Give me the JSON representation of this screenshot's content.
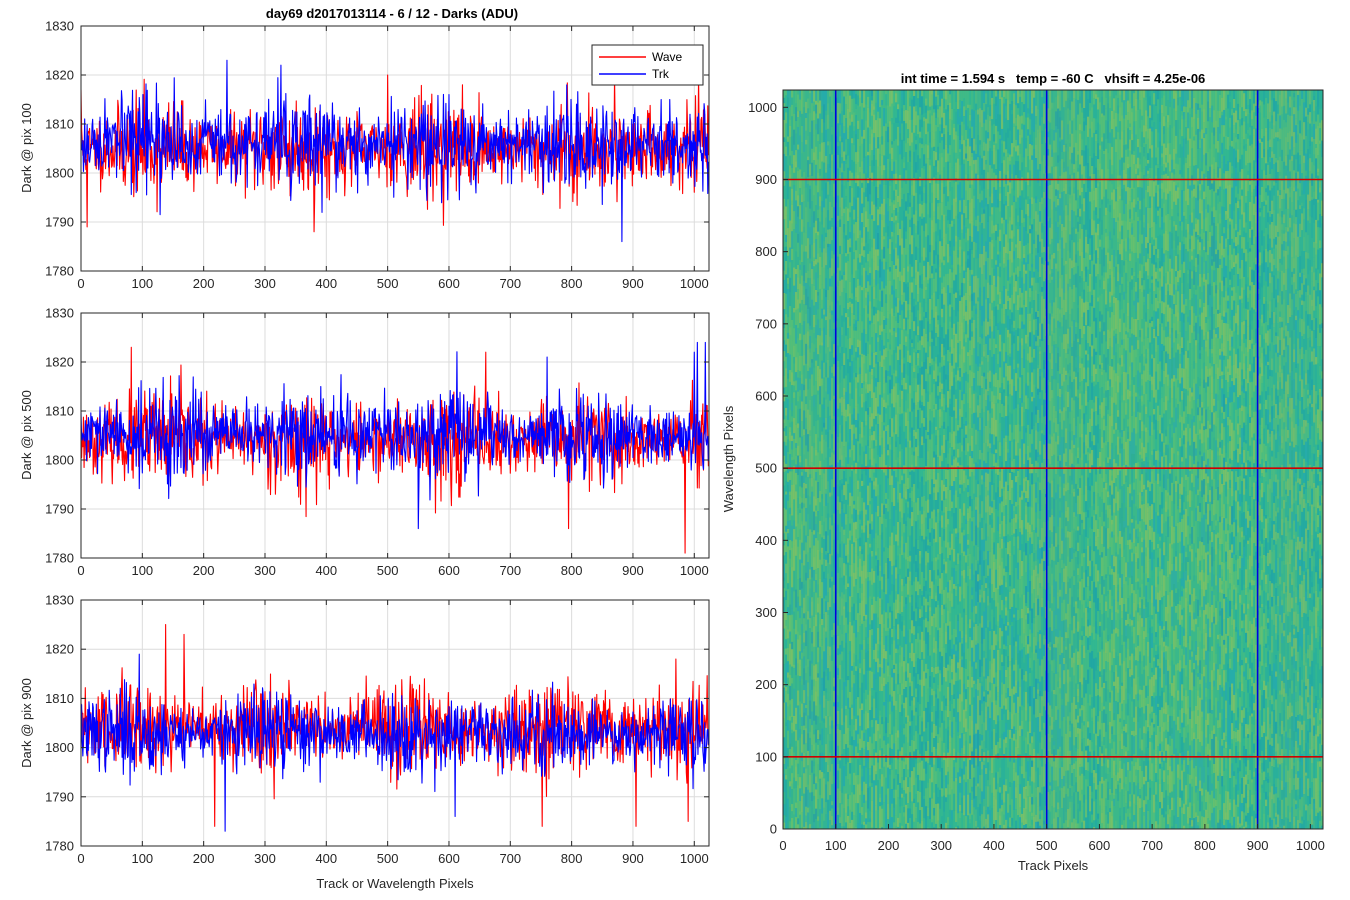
{
  "figure": {
    "title": "day69 d2017013114 - 6 / 12 - Darks (ADU)",
    "legend": {
      "wave": "Wave",
      "trk": "Trk",
      "wave_color": "#ff0000",
      "trk_color": "#0000ff"
    }
  },
  "chart_data": [
    {
      "type": "line",
      "title": "day69 d2017013114 - 6 / 12 - Darks (ADU)",
      "ylabel": "Dark @ pix 100",
      "xlabel": "",
      "xlim": [
        0,
        1024
      ],
      "ylim": [
        1780,
        1830
      ],
      "xticks": [
        0,
        100,
        200,
        300,
        400,
        500,
        600,
        700,
        800,
        900,
        1000
      ],
      "yticks": [
        1780,
        1790,
        1800,
        1810,
        1820,
        1830
      ],
      "grid": true,
      "legend": "top-right",
      "series": [
        {
          "name": "Wave",
          "color": "#ff0000",
          "n": 1024,
          "seed": 11,
          "mean": 1805,
          "noise_sd": 4.2,
          "spikes": [
            [
              0,
              1817
            ],
            [
              10,
              1789
            ],
            [
              500,
              1820
            ],
            [
              380,
              1788
            ],
            [
              870,
              1820
            ]
          ]
        },
        {
          "name": "Trk",
          "color": "#0000ff",
          "n": 1024,
          "seed": 17,
          "mean": 1806,
          "noise_sd": 4.2,
          "spikes": [
            [
              238,
              1823
            ],
            [
              326,
              1822
            ],
            [
              882,
              1786
            ],
            [
              960,
              1815
            ]
          ]
        }
      ]
    },
    {
      "type": "line",
      "title": "",
      "ylabel": "Dark @ pix 500",
      "xlabel": "",
      "xlim": [
        0,
        1024
      ],
      "ylim": [
        1780,
        1830
      ],
      "xticks": [
        0,
        100,
        200,
        300,
        400,
        500,
        600,
        700,
        800,
        900,
        1000
      ],
      "yticks": [
        1780,
        1790,
        1800,
        1810,
        1820,
        1830
      ],
      "grid": true,
      "series": [
        {
          "name": "Wave",
          "color": "#ff0000",
          "n": 1024,
          "seed": 23,
          "mean": 1804,
          "noise_sd": 4.2,
          "spikes": [
            [
              82,
              1823
            ],
            [
              985,
              1781
            ],
            [
              795,
              1786
            ],
            [
              660,
              1822
            ]
          ]
        },
        {
          "name": "Trk",
          "color": "#0000ff",
          "n": 1024,
          "seed": 29,
          "mean": 1805,
          "noise_sd": 4.0,
          "spikes": [
            [
              1005,
              1824
            ],
            [
              1018,
              1824
            ],
            [
              1000,
              1822
            ],
            [
              760,
              1821
            ],
            [
              550,
              1786
            ]
          ]
        }
      ]
    },
    {
      "type": "line",
      "title": "",
      "ylabel": "Dark @ pix 900",
      "xlabel": "Track or Wavelength Pixels",
      "xlim": [
        0,
        1024
      ],
      "ylim": [
        1780,
        1830
      ],
      "xticks": [
        0,
        100,
        200,
        300,
        400,
        500,
        600,
        700,
        800,
        900,
        1000
      ],
      "yticks": [
        1780,
        1790,
        1800,
        1810,
        1820,
        1830
      ],
      "grid": true,
      "series": [
        {
          "name": "Wave",
          "color": "#ff0000",
          "n": 1024,
          "seed": 31,
          "mean": 1804,
          "noise_sd": 4.0,
          "spikes": [
            [
              138,
              1825
            ],
            [
              168,
              1823
            ],
            [
              218,
              1784
            ],
            [
              752,
              1784
            ],
            [
              905,
              1784
            ],
            [
              970,
              1818
            ],
            [
              990,
              1785
            ]
          ]
        },
        {
          "name": "Trk",
          "color": "#0000ff",
          "n": 1024,
          "seed": 37,
          "mean": 1803,
          "noise_sd": 3.6,
          "spikes": [
            [
              95,
              1819
            ],
            [
              235,
              1783
            ],
            [
              610,
              1786
            ]
          ]
        }
      ]
    },
    {
      "type": "heatmap",
      "title": "int time = 1.594 s   temp = -60 C   vhsift = 4.25e-06",
      "xlabel": "Track Pixels",
      "ylabel": "Wavelength Pixels",
      "xlim": [
        0,
        1024
      ],
      "ylim": [
        0,
        1024
      ],
      "xticks": [
        0,
        100,
        200,
        300,
        400,
        500,
        600,
        700,
        800,
        900,
        1000
      ],
      "yticks": [
        0,
        100,
        200,
        300,
        400,
        500,
        600,
        700,
        800,
        900,
        1000
      ],
      "colormap": "parula",
      "base_color": "#25b39a",
      "cross_cuts": {
        "rows": [
          100,
          500,
          900
        ],
        "row_color": "#d00000",
        "cols": [
          100,
          500,
          900
        ],
        "col_color": "#0000e0"
      }
    }
  ]
}
